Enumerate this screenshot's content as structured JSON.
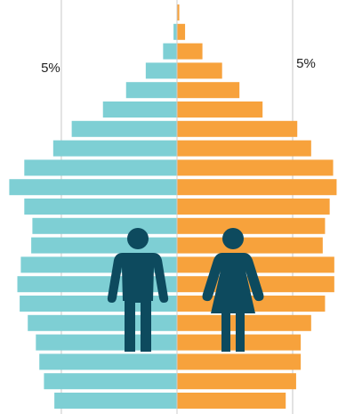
{
  "chart_data": {
    "type": "population-pyramid",
    "categories": [
      null,
      null,
      null,
      null,
      null,
      null,
      null,
      null,
      null,
      null,
      null,
      null,
      null,
      null,
      null,
      null,
      null,
      null,
      null,
      null,
      null
    ],
    "series": [
      {
        "color": "#7ecfd4",
        "values": [
          0,
          -0.15,
          -0.6,
          -1.35,
          -2.2,
          -3.2,
          -4.55,
          -5.35,
          -6.6,
          -7.25,
          -6.6,
          -6.25,
          -6.3,
          -6.75,
          -6.9,
          -6.8,
          -6.45,
          -6.1,
          -5.95,
          -5.75,
          -5.3
        ]
      },
      {
        "color": "#f7a23c",
        "values": [
          0.1,
          0.35,
          1.1,
          1.95,
          2.7,
          3.7,
          5.2,
          5.8,
          6.75,
          6.9,
          6.6,
          6.4,
          6.3,
          6.8,
          6.8,
          6.4,
          5.8,
          5.35,
          5.35,
          5.15,
          4.7
        ]
      }
    ],
    "xlim": [
      -7.65,
      6.96
    ],
    "xticks": [
      {
        "value": -5,
        "label": "5%"
      },
      {
        "value": 5,
        "label": "5%"
      }
    ],
    "grid": true
  }
}
